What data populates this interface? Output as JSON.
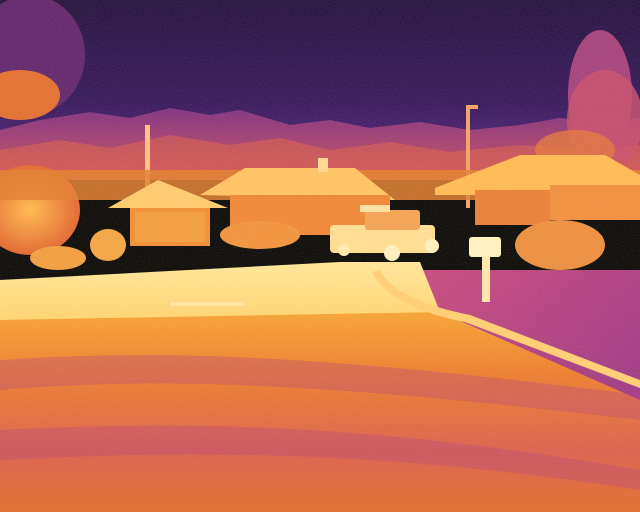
{
  "image": {
    "kind": "thermal-camera-photo",
    "palette": "ironbow",
    "palette_colors": {
      "cold": "#1e0a3c",
      "cool": "#4a1a78",
      "mid": "#b8327a",
      "warm": "#f07a1e",
      "hot": "#ffc84a",
      "hottest": "#fff4c0"
    },
    "objects": [
      "sky",
      "mountain-range",
      "tree-left",
      "tree-right",
      "house-left",
      "house-center",
      "house-right",
      "utility-pole",
      "street-light",
      "pickup-truck",
      "mailbox",
      "curb",
      "sidewalk",
      "road"
    ]
  }
}
